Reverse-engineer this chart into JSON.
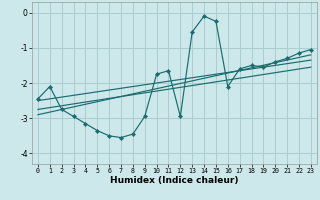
{
  "xlabel": "Humidex (Indice chaleur)",
  "bg_color": "#cce8ea",
  "grid_color": "#aacdd0",
  "line_color": "#1a6b6e",
  "xlim": [
    -0.5,
    23.5
  ],
  "ylim": [
    -4.3,
    0.3
  ],
  "yticks": [
    0,
    -1,
    -2,
    -3,
    -4
  ],
  "xticks": [
    0,
    1,
    2,
    3,
    4,
    5,
    6,
    7,
    8,
    9,
    10,
    11,
    12,
    13,
    14,
    15,
    16,
    17,
    18,
    19,
    20,
    21,
    22,
    23
  ],
  "main_x": [
    0,
    1,
    2,
    3,
    4,
    5,
    6,
    7,
    8,
    9,
    10,
    11,
    12,
    13,
    14,
    15,
    16,
    17,
    18,
    19,
    20,
    21,
    22,
    23
  ],
  "main_y": [
    -2.45,
    -2.1,
    -2.75,
    -2.95,
    -3.15,
    -3.35,
    -3.5,
    -3.55,
    -3.45,
    -2.95,
    -1.75,
    -1.65,
    -2.95,
    -0.55,
    -0.1,
    -0.25,
    -2.1,
    -1.6,
    -1.5,
    -1.55,
    -1.4,
    -1.3,
    -1.15,
    -1.05
  ],
  "line1_x": [
    0,
    23
  ],
  "line1_y": [
    -2.5,
    -1.35
  ],
  "line2_x": [
    0,
    23
  ],
  "line2_y": [
    -2.75,
    -1.55
  ],
  "line3_x": [
    0,
    23
  ],
  "line3_y": [
    -2.9,
    -1.2
  ]
}
